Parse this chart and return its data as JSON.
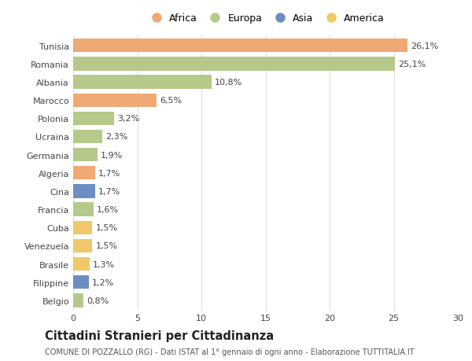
{
  "categories": [
    "Tunisia",
    "Romania",
    "Albania",
    "Marocco",
    "Polonia",
    "Ucraina",
    "Germania",
    "Algeria",
    "Cina",
    "Francia",
    "Cuba",
    "Venezuela",
    "Brasile",
    "Filippine",
    "Belgio"
  ],
  "values": [
    26.1,
    25.1,
    10.8,
    6.5,
    3.2,
    2.3,
    1.9,
    1.7,
    1.7,
    1.6,
    1.5,
    1.5,
    1.3,
    1.2,
    0.8
  ],
  "labels": [
    "26,1%",
    "25,1%",
    "10,8%",
    "6,5%",
    "3,2%",
    "2,3%",
    "1,9%",
    "1,7%",
    "1,7%",
    "1,6%",
    "1,5%",
    "1,5%",
    "1,3%",
    "1,2%",
    "0,8%"
  ],
  "continents": [
    "Africa",
    "Europa",
    "Europa",
    "Africa",
    "Europa",
    "Europa",
    "Europa",
    "Africa",
    "Asia",
    "Europa",
    "America",
    "America",
    "America",
    "Asia",
    "Europa"
  ],
  "continent_colors": {
    "Africa": "#F0A875",
    "Europa": "#B5C98A",
    "Asia": "#6B8EC2",
    "America": "#F0C86A"
  },
  "legend_order": [
    "Africa",
    "Europa",
    "Asia",
    "America"
  ],
  "title": "Cittadini Stranieri per Cittadinanza",
  "subtitle": "COMUNE DI POZZALLO (RG) - Dati ISTAT al 1° gennaio di ogni anno - Elaborazione TUTTITALIA.IT",
  "xlim": [
    0,
    30
  ],
  "xticks": [
    0,
    5,
    10,
    15,
    20,
    25,
    30
  ],
  "bg_color": "#ffffff",
  "grid_color": "#e0e0e0",
  "bar_height": 0.75,
  "label_fontsize": 8,
  "tick_fontsize": 8,
  "title_fontsize": 10.5,
  "subtitle_fontsize": 7
}
